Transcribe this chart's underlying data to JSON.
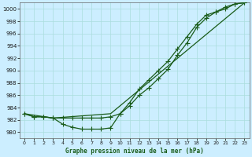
{
  "xlabel": "Graphe pression niveau de la mer (hPa)",
  "bg_color": "#cceeff",
  "plot_bg_color": "#cceeff",
  "line_color": "#1a5c1a",
  "grid_color": "#aadddd",
  "ylim": [
    979.0,
    1001.0
  ],
  "xlim": [
    -0.5,
    23.5
  ],
  "yticks": [
    980,
    982,
    984,
    986,
    988,
    990,
    992,
    994,
    996,
    998,
    1000
  ],
  "xticks": [
    0,
    1,
    2,
    3,
    4,
    5,
    6,
    7,
    8,
    9,
    10,
    11,
    12,
    13,
    14,
    15,
    16,
    17,
    18,
    19,
    20,
    21,
    22,
    23
  ],
  "line1_x": [
    0,
    1,
    2,
    3,
    4,
    5,
    6,
    7,
    8,
    9,
    10,
    11,
    12,
    13,
    14,
    15,
    16,
    17,
    18,
    19,
    20,
    21,
    22,
    23
  ],
  "line1_y": [
    983.0,
    982.5,
    982.5,
    982.3,
    981.3,
    980.8,
    980.5,
    980.5,
    980.5,
    980.7,
    983.0,
    984.3,
    986.0,
    987.2,
    988.7,
    990.2,
    992.5,
    994.5,
    997.0,
    998.5,
    999.5,
    1000.0,
    1000.8,
    1001.0
  ],
  "line2_x": [
    0,
    1,
    2,
    3,
    4,
    5,
    6,
    7,
    8,
    9,
    10,
    11,
    12,
    13,
    14,
    15,
    16,
    17,
    18,
    19,
    20,
    21,
    22,
    23
  ],
  "line2_y": [
    983.0,
    982.5,
    982.5,
    982.3,
    982.3,
    982.3,
    982.3,
    982.3,
    982.3,
    982.5,
    983.0,
    984.8,
    987.0,
    988.5,
    990.0,
    991.5,
    993.5,
    995.5,
    997.5,
    999.0,
    999.5,
    1000.3,
    1000.8,
    1001.0
  ],
  "line3_x": [
    0,
    3,
    9,
    23
  ],
  "line3_y": [
    983.0,
    982.3,
    983.0,
    1001.0
  ],
  "marker": "+",
  "markersize": 4,
  "linewidth": 0.9
}
